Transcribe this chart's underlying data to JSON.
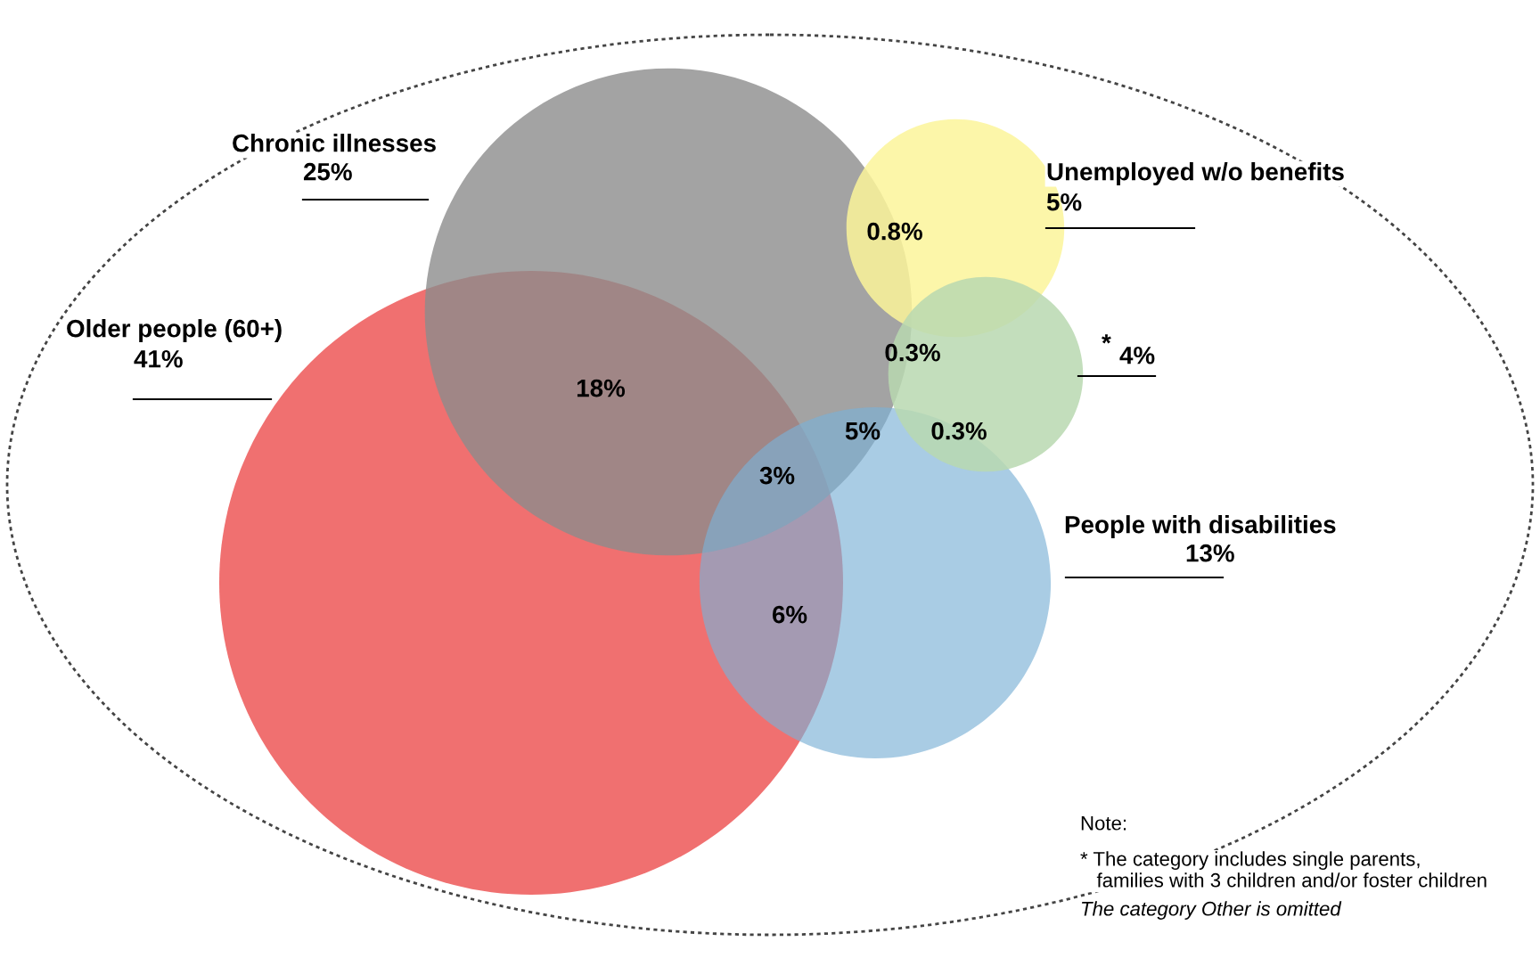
{
  "chart_data": {
    "type": "other",
    "categories": [
      "Older people (60+)",
      "Chronic illnesses",
      "Unemployed w/o benefits",
      "*",
      "People with disabilities"
    ],
    "values": [
      41,
      25,
      5,
      4,
      13
    ],
    "colors": [
      "#f07070",
      "#8c8c8c",
      "#fbf59a",
      "#b8d8b0",
      "#7bb0d6"
    ],
    "value_labels": [
      "41%",
      "25%",
      "5%",
      "4%",
      "13%"
    ],
    "annotations": [
      "18%",
      "3%",
      "6%",
      "5%",
      "0.8%",
      "0.3%",
      "0.3%",
      "Note:",
      "* The category includes single parents,\n   families with 3 children and/or foster children",
      "The category Other is omitted"
    ]
  }
}
